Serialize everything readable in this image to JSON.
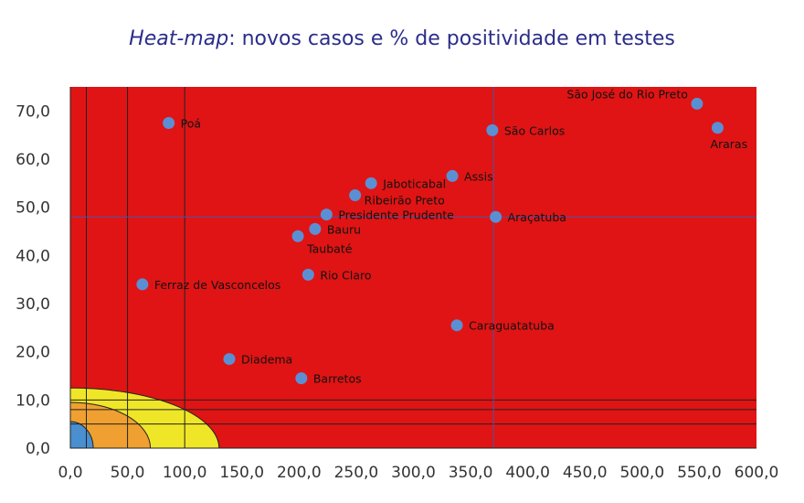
{
  "chart_data": {
    "type": "scatter",
    "title_emphasis": "Heat-map",
    "title_rest": ": novos casos e % de positividade em testes",
    "xlim": [
      0,
      600
    ],
    "ylim": [
      0,
      75
    ],
    "x_ticks": [
      0,
      50,
      100,
      150,
      200,
      250,
      300,
      350,
      400,
      450,
      500,
      550,
      600
    ],
    "x_tick_labels": [
      "0,0",
      "50,0",
      "100,0",
      "150,0",
      "200,0",
      "250,0",
      "300,0",
      "350,0",
      "400,0",
      "450,0",
      "500,0",
      "550,0",
      "600,0"
    ],
    "y_ticks": [
      0,
      10,
      20,
      30,
      40,
      50,
      60,
      70
    ],
    "y_tick_labels": [
      "0,0",
      "10,0",
      "20,0",
      "30,0",
      "40,0",
      "50,0",
      "60,0",
      "70,0"
    ],
    "grid": false,
    "background_color": "#e01414",
    "point_color": "#5b8fd4",
    "zones": [
      {
        "rx": 130,
        "ry": 12.5,
        "color": "#f0e628"
      },
      {
        "rx": 70,
        "ry": 9.5,
        "color": "#f0a030"
      },
      {
        "rx": 20,
        "ry": 5.5,
        "color": "#4a8fcf"
      }
    ],
    "vertical_lines": [
      14,
      50,
      100
    ],
    "horizontal_lines": [
      5,
      8,
      10
    ],
    "reference_lines": {
      "x": 370,
      "y": 48
    },
    "points": [
      {
        "label": "Poá",
        "x": 86,
        "y": 67.5,
        "label_pos": "right"
      },
      {
        "label": "São José do Rio Preto",
        "x": 548,
        "y": 71.5,
        "label_pos": "above-left"
      },
      {
        "label": "Araras",
        "x": 566,
        "y": 66.5,
        "label_pos": "below"
      },
      {
        "label": "São Carlos",
        "x": 369,
        "y": 66,
        "label_pos": "right"
      },
      {
        "label": "Assis",
        "x": 334,
        "y": 56.5,
        "label_pos": "right"
      },
      {
        "label": "Jaboticabal",
        "x": 263,
        "y": 55,
        "label_pos": "right"
      },
      {
        "label": "Ribeirão Preto",
        "x": 249,
        "y": 52.5,
        "label_pos": "right-below"
      },
      {
        "label": "Presidente Prudente",
        "x": 224,
        "y": 48.5,
        "label_pos": "right"
      },
      {
        "label": "Araçatuba",
        "x": 372,
        "y": 48,
        "label_pos": "right"
      },
      {
        "label": "Bauru",
        "x": 214,
        "y": 45.5,
        "label_pos": "right"
      },
      {
        "label": "Taubaté",
        "x": 199,
        "y": 44,
        "label_pos": "below-right"
      },
      {
        "label": "Rio Claro",
        "x": 208,
        "y": 36,
        "label_pos": "right"
      },
      {
        "label": "Ferraz de Vasconcelos",
        "x": 63,
        "y": 34,
        "label_pos": "right"
      },
      {
        "label": "Caraguatatuba",
        "x": 338,
        "y": 25.5,
        "label_pos": "right"
      },
      {
        "label": "Diadema",
        "x": 139,
        "y": 18.5,
        "label_pos": "right"
      },
      {
        "label": "Barretos",
        "x": 202,
        "y": 14.5,
        "label_pos": "right"
      }
    ]
  }
}
